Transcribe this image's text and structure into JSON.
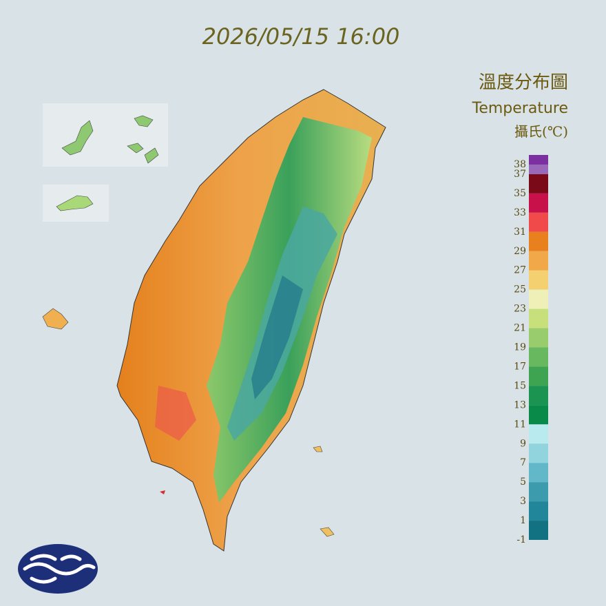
{
  "timestamp": "2026/05/15 16:00",
  "legend": {
    "title": "溫度分布圖",
    "subtitle": "Temperature",
    "unit": "攝氏(℃)",
    "labels": [
      38,
      37,
      35,
      33,
      31,
      29,
      27,
      25,
      23,
      21,
      19,
      17,
      15,
      13,
      11,
      9,
      7,
      5,
      3,
      1,
      -1
    ],
    "colors": [
      "#7b2fa0",
      "#9a68b8",
      "#7a0a18",
      "#c8104a",
      "#f04a4a",
      "#e8801e",
      "#f0a848",
      "#f5d070",
      "#eef0b8",
      "#c8e07c",
      "#98cc6c",
      "#68b860",
      "#3ea452",
      "#1a9450",
      "#0a8a48",
      "#b8eaee",
      "#92d4de",
      "#62b8c8",
      "#3c9cae",
      "#22869a",
      "#127282"
    ]
  }
}
